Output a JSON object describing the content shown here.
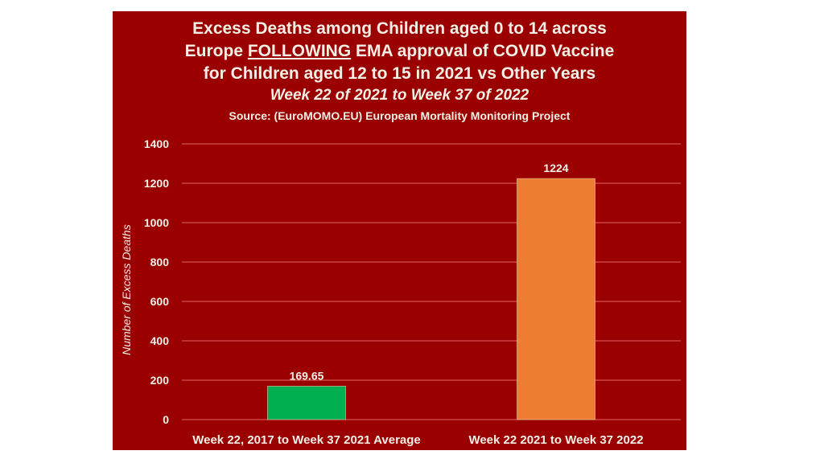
{
  "chart_data": {
    "type": "bar",
    "title_lines": [
      "Excess Deaths among Children aged 0 to 14 across",
      "Europe FOLLOWING EMA approval of COVID Vaccine",
      "for Children aged 12 to 15 in 2021 vs Other Years"
    ],
    "title_line2_parts": {
      "before": "Europe ",
      "underlined": "FOLLOWING",
      "after": " EMA approval of COVID Vaccine"
    },
    "subtitle": "Week 22 of 2021 to Week 37 of 2022",
    "source": "Source: (EuroMOMO.EU) European Mortality Monitoring Project",
    "categories": [
      "Week 22, 2017 to Week 37 2021 Average",
      "Week 22 2021 to Week 37 2022"
    ],
    "values": [
      169.65,
      1224
    ],
    "data_labels": [
      "169.65",
      "1224"
    ],
    "bar_colors": [
      "#00b050",
      "#ed7d31"
    ],
    "xlabel": "",
    "ylabel": "Number of Excess Deaths",
    "ylim": [
      0,
      1400
    ],
    "yticks": [
      0,
      200,
      400,
      600,
      800,
      1000,
      1200,
      1400
    ],
    "grid": true,
    "legend": "none",
    "background_color": "#9b0000",
    "text_color": "#f3efe6",
    "gridline_color": "#e06666"
  }
}
